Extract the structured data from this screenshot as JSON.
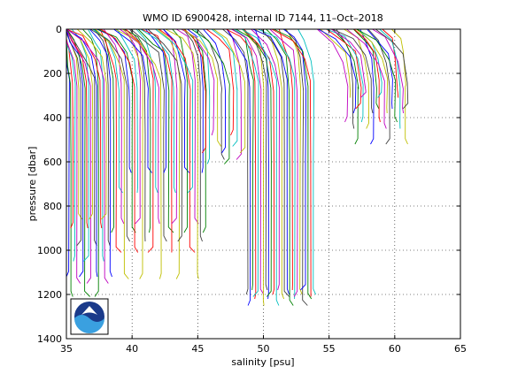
{
  "chart_data": {
    "type": "line",
    "title": "WMO ID 6900428, internal ID 7144, 11–Oct–2018",
    "xlabel": "salinity [psu]",
    "ylabel": "pressure [dbar]",
    "xlim": [
      35,
      65
    ],
    "ylim": [
      0,
      1400
    ],
    "y_inverted": true,
    "grid": true,
    "x_ticks": [
      "35",
      "40",
      "45",
      "50",
      "55",
      "60",
      "65"
    ],
    "y_ticks": [
      "0",
      "200",
      "400",
      "600",
      "800",
      "1000",
      "1200",
      "1400"
    ],
    "logo": "noaa-logo",
    "series_colors": [
      "#0000ff",
      "#008000",
      "#ff0000",
      "#00bfbf",
      "#bf00bf",
      "#bfbf00",
      "#404040"
    ],
    "profile_groups": [
      {
        "x_start": 35.2,
        "x_step": 0.15,
        "count": 22,
        "depth": [
          1120,
          1210,
          900,
          1050,
          1150,
          860,
          980
        ]
      },
      {
        "x_start": 38.6,
        "x_step": 0.2,
        "count": 36,
        "depth": [
          920,
          1010,
          740,
          880,
          1130,
          960,
          650
        ]
      },
      {
        "x_start": 45.6,
        "x_step": 0.3,
        "count": 11,
        "depth": [
          560,
          610,
          480,
          530,
          590
        ]
      },
      {
        "x_start": 48.8,
        "x_step": 0.2,
        "count": 26,
        "depth": [
          1200,
          1250,
          1180,
          1220,
          1210
        ]
      },
      {
        "x_start": 56.4,
        "x_step": 0.2,
        "count": 24,
        "depth": [
          420,
          310,
          450,
          380,
          520,
          360
        ]
      }
    ]
  }
}
